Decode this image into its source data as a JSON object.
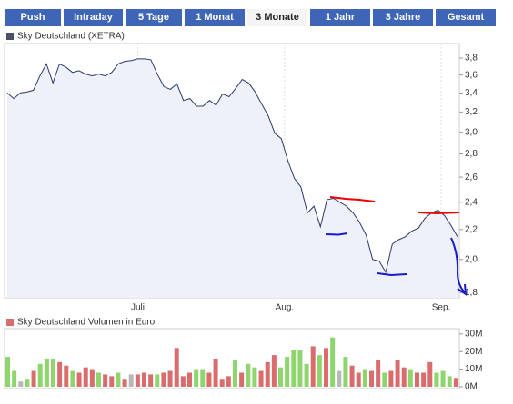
{
  "tabs": [
    "Push",
    "Intraday",
    "5 Tage",
    "1 Monat",
    "3 Monate",
    "1 Jahr",
    "3 Jahre",
    "Gesamt"
  ],
  "chart_data": [
    {
      "type": "line",
      "title": "Sky Deutschland (XETRA)",
      "color": "#2b3a6b",
      "fill": "#eef0fa",
      "log_scale": true,
      "values": [
        3.4,
        3.34,
        3.4,
        3.41,
        3.43,
        3.59,
        3.73,
        3.51,
        3.73,
        3.69,
        3.63,
        3.65,
        3.61,
        3.59,
        3.61,
        3.59,
        3.63,
        3.73,
        3.76,
        3.77,
        3.79,
        3.79,
        3.78,
        3.61,
        3.47,
        3.44,
        3.5,
        3.32,
        3.34,
        3.26,
        3.26,
        3.32,
        3.27,
        3.39,
        3.36,
        3.45,
        3.55,
        3.51,
        3.41,
        3.28,
        3.16,
        2.99,
        2.94,
        2.74,
        2.59,
        2.52,
        2.32,
        2.37,
        2.22,
        2.42,
        2.43,
        2.4,
        2.37,
        2.32,
        2.25,
        2.16,
        2.0,
        1.99,
        1.92,
        2.1,
        2.13,
        2.15,
        2.19,
        2.21,
        2.28,
        2.32,
        2.34,
        2.3,
        2.23,
        2.15
      ],
      "xlim": [
        0,
        69
      ],
      "xticks": [
        {
          "value": 20,
          "label": "Juli"
        },
        {
          "value": 42.5,
          "label": "Aug."
        },
        {
          "value": 66.5,
          "label": "Sep."
        }
      ],
      "ylim": [
        1.77,
        3.98
      ],
      "yticks": [
        {
          "value": 1.8,
          "label": "1,8"
        },
        {
          "value": 2.0,
          "label": "2,0"
        },
        {
          "value": 2.2,
          "label": "2,2"
        },
        {
          "value": 2.4,
          "label": "2,4"
        },
        {
          "value": 2.6,
          "label": "2,6"
        },
        {
          "value": 2.8,
          "label": "2,8"
        },
        {
          "value": 3.0,
          "label": "3,0"
        },
        {
          "value": 3.2,
          "label": "3,2"
        },
        {
          "value": 3.4,
          "label": "3,4"
        },
        {
          "value": 3.6,
          "label": "3,6"
        },
        {
          "value": 3.8,
          "label": "3,8"
        }
      ],
      "grid": true
    },
    {
      "type": "bar",
      "title": "Sky Deutschland Volumen in Euro",
      "legend_color": "#d96c6c",
      "values": [
        17,
        9,
        3,
        4,
        9,
        13,
        16,
        16,
        14,
        12,
        9,
        8,
        11,
        10,
        8,
        7,
        6,
        8,
        4,
        7,
        7,
        8,
        7,
        7,
        8,
        9,
        22,
        6,
        8,
        10,
        10,
        8,
        16,
        4,
        6,
        15,
        8,
        13,
        11,
        9,
        14,
        18,
        11,
        17,
        21,
        21,
        13,
        23,
        18,
        22,
        28,
        9,
        17,
        12,
        8,
        10,
        9,
        15,
        8,
        9,
        15,
        11,
        10,
        8,
        8,
        14,
        8,
        9,
        6,
        5
      ],
      "colors": [
        "#8fd56d",
        "#8fd56d",
        "#b8b8b8",
        "#8fd56d",
        "#d96c6c",
        "#8fd56d",
        "#8fd56d",
        "#8fd56d",
        "#d96c6c",
        "#d96c6c",
        "#8fd56d",
        "#d96c6c",
        "#d96c6c",
        "#d96c6c",
        "#8fd56d",
        "#d96c6c",
        "#d96c6c",
        "#8fd56d",
        "#d96c6c",
        "#b8b8b8",
        "#d96c6c",
        "#d96c6c",
        "#d96c6c",
        "#8fd56d",
        "#d96c6c",
        "#d96c6c",
        "#d96c6c",
        "#d96c6c",
        "#d96c6c",
        "#8fd56d",
        "#8fd56d",
        "#d96c6c",
        "#d96c6c",
        "#d96c6c",
        "#d96c6c",
        "#8fd56d",
        "#d96c6c",
        "#8fd56d",
        "#8fd56d",
        "#d96c6c",
        "#d96c6c",
        "#d96c6c",
        "#8fd56d",
        "#8fd56d",
        "#8fd56d",
        "#8fd56d",
        "#8fd56d",
        "#d96c6c",
        "#8fd56d",
        "#d96c6c",
        "#8fd56d",
        "#b8b8b8",
        "#8fd56d",
        "#d96c6c",
        "#d96c6c",
        "#8fd56d",
        "#d96c6c",
        "#d96c6c",
        "#8fd56d",
        "#d96c6c",
        "#d96c6c",
        "#d96c6c",
        "#8fd56d",
        "#d96c6c",
        "#d96c6c",
        "#d96c6c",
        "#8fd56d",
        "#8fd56d",
        "#8fd56d",
        "#d96c6c"
      ],
      "ylim": [
        0,
        33
      ],
      "yticks": [
        {
          "value": 0,
          "label": "0M"
        },
        {
          "value": 10,
          "label": "10M"
        },
        {
          "value": 20,
          "label": "20M"
        },
        {
          "value": 30,
          "label": "30M"
        }
      ]
    }
  ]
}
